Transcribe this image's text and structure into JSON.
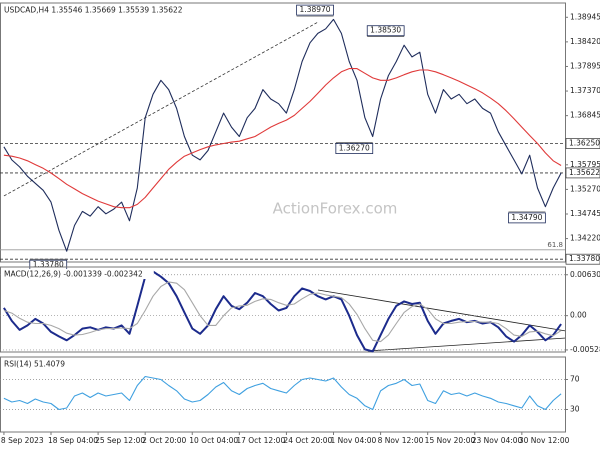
{
  "chart_data": [
    {
      "type": "line",
      "title": "USDCAD,H4  1.35546 1.35669 1.35539 1.35622",
      "watermark": "ActionForex.com",
      "ylim": [
        1.3372,
        1.3925
      ],
      "yticks": [
        1.38945,
        {
          "value": 1.3842,
          "label": "1.38420"
        },
        1.37895,
        {
          "value": 1.3737,
          "label": "1.37370"
        },
        1.36845,
        1.35795,
        {
          "value": 1.3527,
          "label": "1.35270"
        },
        1.34745,
        {
          "value": 1.3422,
          "label": "1.34220"
        }
      ],
      "grid": false,
      "levels": [
        {
          "value": 1.3625,
          "label": "1.36250"
        },
        {
          "value": 1.35622,
          "label": "1.35622"
        },
        {
          "value": 1.3378,
          "label": "1.33780"
        }
      ],
      "annotations": [
        {
          "value": 1.3897,
          "label": "1.38970",
          "index": 42
        },
        {
          "value": 1.3853,
          "label": "1.38530",
          "index": 51
        },
        {
          "value": 1.3627,
          "label": "1.36270",
          "index": 47
        },
        {
          "value": 1.3479,
          "label": "1.34790",
          "index": 69
        },
        {
          "value": 1.3378,
          "label": "1.33780",
          "index": 8
        }
      ],
      "trendline": {
        "values": [
          1.3513,
          1.3884
        ],
        "indices": [
          0,
          40
        ]
      },
      "fib": {
        "label": "61.8",
        "value": 1.3398
      },
      "series": [
        {
          "color": "#1f2d5c",
          "values": [
            1.3618,
            1.359,
            1.3575,
            1.3555,
            1.354,
            1.3525,
            1.35,
            1.344,
            1.3395,
            1.345,
            1.348,
            1.347,
            1.349,
            1.3475,
            1.3485,
            1.35,
            1.346,
            1.353,
            1.368,
            1.373,
            1.376,
            1.374,
            1.37,
            1.364,
            1.36,
            1.359,
            1.361,
            1.365,
            1.369,
            1.366,
            1.364,
            1.368,
            1.37,
            1.374,
            1.372,
            1.371,
            1.369,
            1.374,
            1.38,
            1.384,
            1.386,
            1.387,
            1.389,
            1.386,
            1.38,
            1.376,
            1.368,
            1.364,
            1.372,
            1.377,
            1.38,
            1.3835,
            1.381,
            1.382,
            1.373,
            1.369,
            1.374,
            1.372,
            1.373,
            1.371,
            1.372,
            1.37,
            1.369,
            1.365,
            1.362,
            1.359,
            1.356,
            1.36,
            1.353,
            1.349,
            1.353,
            1.3562
          ]
        },
        {
          "color": "#e03a3a",
          "values": [
            1.36,
            1.3598,
            1.3594,
            1.3588,
            1.358,
            1.3572,
            1.3562,
            1.355,
            1.3538,
            1.3528,
            1.3518,
            1.351,
            1.3502,
            1.3496,
            1.349,
            1.3488,
            1.3488,
            1.3495,
            1.351,
            1.353,
            1.355,
            1.357,
            1.3585,
            1.3598,
            1.3605,
            1.3612,
            1.3618,
            1.3622,
            1.3625,
            1.3628,
            1.363,
            1.3635,
            1.364,
            1.365,
            1.366,
            1.3668,
            1.3675,
            1.3685,
            1.37,
            1.3715,
            1.3732,
            1.375,
            1.3765,
            1.3778,
            1.3785,
            1.3785,
            1.3775,
            1.3765,
            1.376,
            1.376,
            1.3765,
            1.3772,
            1.3778,
            1.3782,
            1.3782,
            1.3778,
            1.3772,
            1.3765,
            1.3758,
            1.375,
            1.3742,
            1.3733,
            1.3722,
            1.371,
            1.3695,
            1.3678,
            1.366,
            1.3642,
            1.3625,
            1.3605,
            1.3588,
            1.3578
          ]
        }
      ]
    },
    {
      "type": "line",
      "title": "MACD(12,26,9) -0.001339 -0.002342",
      "ylim": [
        -0.0056,
        0.0075
      ],
      "yticks": [
        0.006305,
        {
          "value": 0,
          "label": "0.00"
        },
        -0.005283
      ],
      "grid": true,
      "series": [
        {
          "color": "#1c2b8c",
          "values": [
            0.0012,
            -0.0008,
            -0.0022,
            -0.0015,
            -0.0005,
            -0.0012,
            -0.0025,
            -0.0032,
            -0.0038,
            -0.003,
            -0.002,
            -0.0018,
            -0.0022,
            -0.0018,
            -0.002,
            -0.0015,
            -0.0028,
            0.0015,
            0.006,
            0.0068,
            0.006,
            0.005,
            0.003,
            0.0005,
            -0.002,
            -0.0028,
            -0.0015,
            0.001,
            0.003,
            0.0015,
            0.001,
            0.002,
            0.0035,
            0.003,
            0.0018,
            0.0008,
            0.0012,
            0.003,
            0.0042,
            0.0038,
            0.003,
            0.0025,
            0.003,
            0.0025,
            0,
            -0.003,
            -0.0052,
            -0.0055,
            -0.003,
            -0.0005,
            0.0015,
            0.0022,
            0.0018,
            0.002,
            -0.0008,
            -0.0028,
            -0.0012,
            -0.0008,
            -0.0005,
            -0.001,
            -0.0008,
            -0.0012,
            -0.001,
            -0.0018,
            -0.0032,
            -0.004,
            -0.003,
            -0.0015,
            -0.0025,
            -0.0038,
            -0.003,
            -0.0013
          ]
        },
        {
          "color": "#a8a8a8",
          "values": [
            0.0008,
            0.0004,
            -0.0004,
            -0.001,
            -0.0012,
            -0.0012,
            -0.0015,
            -0.002,
            -0.0027,
            -0.003,
            -0.0029,
            -0.0026,
            -0.0022,
            -0.002,
            -0.002,
            -0.0019,
            -0.002,
            -0.0012,
            0.0008,
            0.003,
            0.0045,
            0.0052,
            0.005,
            0.004,
            0.002,
            0,
            -0.0015,
            -0.0015,
            0,
            0.0012,
            0.0015,
            0.0016,
            0.0022,
            0.0026,
            0.0025,
            0.002,
            0.0016,
            0.0018,
            0.0026,
            0.0033,
            0.0035,
            0.0032,
            0.003,
            0.0028,
            0.0018,
            0.0002,
            -0.002,
            -0.0038,
            -0.004,
            -0.003,
            -0.0012,
            0.0005,
            0.0014,
            0.0018,
            0.001,
            -0.0005,
            -0.0012,
            -0.0012,
            -0.001,
            -0.0009,
            -0.0009,
            -0.001,
            -0.001,
            -0.0012,
            -0.002,
            -0.003,
            -0.0032,
            -0.0025,
            -0.0024,
            -0.0028,
            -0.0031,
            -0.0023
          ]
        }
      ]
    },
    {
      "type": "line",
      "title": "RSI(14) 51.4079",
      "ylim": [
        0,
        100
      ],
      "yticks": [
        70,
        30
      ],
      "grid": true,
      "categories": [
        "8 Sep 2023",
        null,
        null,
        null,
        null,
        null,
        "18 Sep 04:00",
        null,
        null,
        null,
        null,
        null,
        "25 Sep 12:00",
        null,
        null,
        null,
        null,
        null,
        "2 Oct 20:00",
        null,
        null,
        null,
        null,
        null,
        "10 Oct 04:00",
        null,
        null,
        null,
        null,
        null,
        "17 Oct 12:00",
        null,
        null,
        null,
        null,
        null,
        "24 Oct 20:00",
        null,
        null,
        null,
        null,
        null,
        "1 Nov 04:00",
        null,
        null,
        null,
        null,
        null,
        "8 Nov 12:00",
        null,
        null,
        null,
        null,
        null,
        "15 Nov 20:00",
        null,
        null,
        null,
        null,
        null,
        "23 Nov 04:00",
        null,
        null,
        null,
        null,
        null,
        "30 Nov 12:00",
        null,
        null,
        null,
        null,
        null
      ],
      "series": [
        {
          "color": "#3fa0e0",
          "values": [
            45,
            40,
            42,
            38,
            44,
            40,
            38,
            30,
            32,
            48,
            52,
            46,
            52,
            48,
            50,
            52,
            42,
            62,
            74,
            72,
            70,
            62,
            55,
            44,
            40,
            42,
            50,
            60,
            66,
            55,
            50,
            58,
            62,
            65,
            58,
            55,
            52,
            62,
            70,
            72,
            70,
            68,
            72,
            60,
            50,
            45,
            35,
            30,
            55,
            62,
            65,
            70,
            62,
            64,
            42,
            38,
            55,
            50,
            52,
            48,
            52,
            48,
            45,
            40,
            38,
            35,
            32,
            48,
            35,
            30,
            42,
            51
          ]
        }
      ]
    }
  ]
}
